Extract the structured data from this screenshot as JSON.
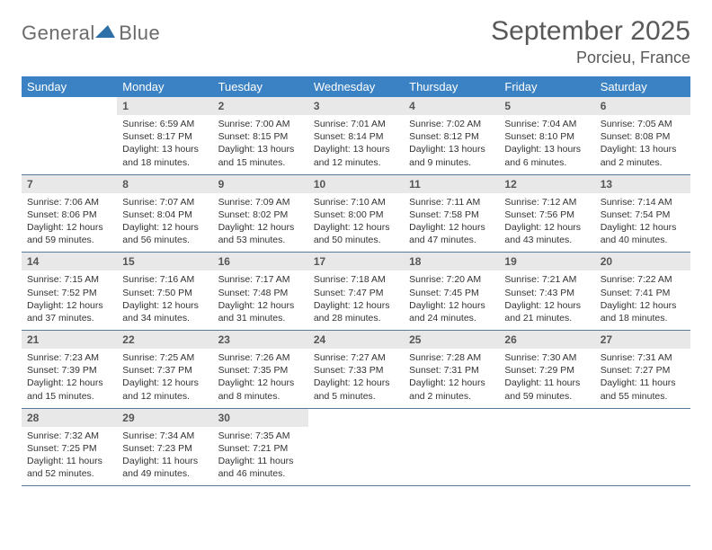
{
  "logo": {
    "word1": "General",
    "word2": "Blue",
    "tri_color": "#2f6fa8"
  },
  "header": {
    "title": "September 2025",
    "location": "Porcieu, France"
  },
  "colors": {
    "header_bg": "#3b82c4",
    "daynum_bg": "#e8e8e8",
    "divider": "#5a7a99"
  },
  "weekdays": [
    "Sunday",
    "Monday",
    "Tuesday",
    "Wednesday",
    "Thursday",
    "Friday",
    "Saturday"
  ],
  "weeks": [
    [
      {
        "n": "",
        "sr": "",
        "ss": "",
        "dl": ""
      },
      {
        "n": "1",
        "sr": "Sunrise: 6:59 AM",
        "ss": "Sunset: 8:17 PM",
        "dl": "Daylight: 13 hours and 18 minutes."
      },
      {
        "n": "2",
        "sr": "Sunrise: 7:00 AM",
        "ss": "Sunset: 8:15 PM",
        "dl": "Daylight: 13 hours and 15 minutes."
      },
      {
        "n": "3",
        "sr": "Sunrise: 7:01 AM",
        "ss": "Sunset: 8:14 PM",
        "dl": "Daylight: 13 hours and 12 minutes."
      },
      {
        "n": "4",
        "sr": "Sunrise: 7:02 AM",
        "ss": "Sunset: 8:12 PM",
        "dl": "Daylight: 13 hours and 9 minutes."
      },
      {
        "n": "5",
        "sr": "Sunrise: 7:04 AM",
        "ss": "Sunset: 8:10 PM",
        "dl": "Daylight: 13 hours and 6 minutes."
      },
      {
        "n": "6",
        "sr": "Sunrise: 7:05 AM",
        "ss": "Sunset: 8:08 PM",
        "dl": "Daylight: 13 hours and 2 minutes."
      }
    ],
    [
      {
        "n": "7",
        "sr": "Sunrise: 7:06 AM",
        "ss": "Sunset: 8:06 PM",
        "dl": "Daylight: 12 hours and 59 minutes."
      },
      {
        "n": "8",
        "sr": "Sunrise: 7:07 AM",
        "ss": "Sunset: 8:04 PM",
        "dl": "Daylight: 12 hours and 56 minutes."
      },
      {
        "n": "9",
        "sr": "Sunrise: 7:09 AM",
        "ss": "Sunset: 8:02 PM",
        "dl": "Daylight: 12 hours and 53 minutes."
      },
      {
        "n": "10",
        "sr": "Sunrise: 7:10 AM",
        "ss": "Sunset: 8:00 PM",
        "dl": "Daylight: 12 hours and 50 minutes."
      },
      {
        "n": "11",
        "sr": "Sunrise: 7:11 AM",
        "ss": "Sunset: 7:58 PM",
        "dl": "Daylight: 12 hours and 47 minutes."
      },
      {
        "n": "12",
        "sr": "Sunrise: 7:12 AM",
        "ss": "Sunset: 7:56 PM",
        "dl": "Daylight: 12 hours and 43 minutes."
      },
      {
        "n": "13",
        "sr": "Sunrise: 7:14 AM",
        "ss": "Sunset: 7:54 PM",
        "dl": "Daylight: 12 hours and 40 minutes."
      }
    ],
    [
      {
        "n": "14",
        "sr": "Sunrise: 7:15 AM",
        "ss": "Sunset: 7:52 PM",
        "dl": "Daylight: 12 hours and 37 minutes."
      },
      {
        "n": "15",
        "sr": "Sunrise: 7:16 AM",
        "ss": "Sunset: 7:50 PM",
        "dl": "Daylight: 12 hours and 34 minutes."
      },
      {
        "n": "16",
        "sr": "Sunrise: 7:17 AM",
        "ss": "Sunset: 7:48 PM",
        "dl": "Daylight: 12 hours and 31 minutes."
      },
      {
        "n": "17",
        "sr": "Sunrise: 7:18 AM",
        "ss": "Sunset: 7:47 PM",
        "dl": "Daylight: 12 hours and 28 minutes."
      },
      {
        "n": "18",
        "sr": "Sunrise: 7:20 AM",
        "ss": "Sunset: 7:45 PM",
        "dl": "Daylight: 12 hours and 24 minutes."
      },
      {
        "n": "19",
        "sr": "Sunrise: 7:21 AM",
        "ss": "Sunset: 7:43 PM",
        "dl": "Daylight: 12 hours and 21 minutes."
      },
      {
        "n": "20",
        "sr": "Sunrise: 7:22 AM",
        "ss": "Sunset: 7:41 PM",
        "dl": "Daylight: 12 hours and 18 minutes."
      }
    ],
    [
      {
        "n": "21",
        "sr": "Sunrise: 7:23 AM",
        "ss": "Sunset: 7:39 PM",
        "dl": "Daylight: 12 hours and 15 minutes."
      },
      {
        "n": "22",
        "sr": "Sunrise: 7:25 AM",
        "ss": "Sunset: 7:37 PM",
        "dl": "Daylight: 12 hours and 12 minutes."
      },
      {
        "n": "23",
        "sr": "Sunrise: 7:26 AM",
        "ss": "Sunset: 7:35 PM",
        "dl": "Daylight: 12 hours and 8 minutes."
      },
      {
        "n": "24",
        "sr": "Sunrise: 7:27 AM",
        "ss": "Sunset: 7:33 PM",
        "dl": "Daylight: 12 hours and 5 minutes."
      },
      {
        "n": "25",
        "sr": "Sunrise: 7:28 AM",
        "ss": "Sunset: 7:31 PM",
        "dl": "Daylight: 12 hours and 2 minutes."
      },
      {
        "n": "26",
        "sr": "Sunrise: 7:30 AM",
        "ss": "Sunset: 7:29 PM",
        "dl": "Daylight: 11 hours and 59 minutes."
      },
      {
        "n": "27",
        "sr": "Sunrise: 7:31 AM",
        "ss": "Sunset: 7:27 PM",
        "dl": "Daylight: 11 hours and 55 minutes."
      }
    ],
    [
      {
        "n": "28",
        "sr": "Sunrise: 7:32 AM",
        "ss": "Sunset: 7:25 PM",
        "dl": "Daylight: 11 hours and 52 minutes."
      },
      {
        "n": "29",
        "sr": "Sunrise: 7:34 AM",
        "ss": "Sunset: 7:23 PM",
        "dl": "Daylight: 11 hours and 49 minutes."
      },
      {
        "n": "30",
        "sr": "Sunrise: 7:35 AM",
        "ss": "Sunset: 7:21 PM",
        "dl": "Daylight: 11 hours and 46 minutes."
      },
      {
        "n": "",
        "sr": "",
        "ss": "",
        "dl": ""
      },
      {
        "n": "",
        "sr": "",
        "ss": "",
        "dl": ""
      },
      {
        "n": "",
        "sr": "",
        "ss": "",
        "dl": ""
      },
      {
        "n": "",
        "sr": "",
        "ss": "",
        "dl": ""
      }
    ]
  ]
}
